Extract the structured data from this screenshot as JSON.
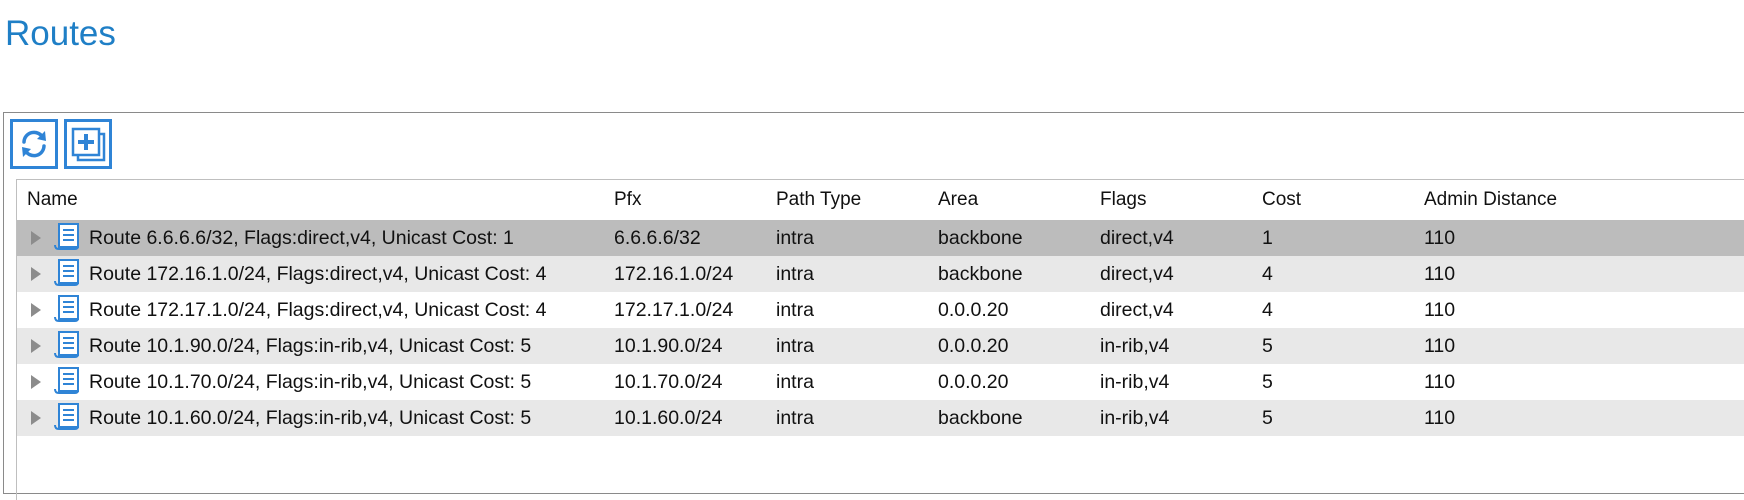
{
  "page": {
    "title": "Routes"
  },
  "toolbar": {
    "refresh_icon": "refresh-icon",
    "add_icon": "add-icon"
  },
  "table": {
    "columns": [
      "Name",
      "Pfx",
      "Path Type",
      "Area",
      "Flags",
      "Cost",
      "Admin Distance"
    ],
    "rows": [
      {
        "name": "Route 6.6.6.6/32, Flags:direct,v4, Unicast Cost: 1",
        "pfx": "6.6.6.6/32",
        "path_type": "intra",
        "area": "backbone",
        "flags": "direct,v4",
        "cost": "1",
        "admin_distance": "110"
      },
      {
        "name": "Route 172.16.1.0/24, Flags:direct,v4, Unicast Cost: 4",
        "pfx": "172.16.1.0/24",
        "path_type": "intra",
        "area": "backbone",
        "flags": "direct,v4",
        "cost": "4",
        "admin_distance": "110"
      },
      {
        "name": "Route 172.17.1.0/24, Flags:direct,v4, Unicast Cost: 4",
        "pfx": "172.17.1.0/24",
        "path_type": "intra",
        "area": "0.0.0.20",
        "flags": "direct,v4",
        "cost": "4",
        "admin_distance": "110"
      },
      {
        "name": "Route 10.1.90.0/24, Flags:in-rib,v4, Unicast Cost: 5",
        "pfx": "10.1.90.0/24",
        "path_type": "intra",
        "area": "0.0.0.20",
        "flags": "in-rib,v4",
        "cost": "5",
        "admin_distance": "110"
      },
      {
        "name": "Route 10.1.70.0/24, Flags:in-rib,v4, Unicast Cost: 5",
        "pfx": "10.1.70.0/24",
        "path_type": "intra",
        "area": "0.0.0.20",
        "flags": "in-rib,v4",
        "cost": "5",
        "admin_distance": "110"
      },
      {
        "name": "Route 10.1.60.0/24, Flags:in-rib,v4, Unicast Cost: 5",
        "pfx": "10.1.60.0/24",
        "path_type": "intra",
        "area": "backbone",
        "flags": "in-rib,v4",
        "cost": "5",
        "admin_distance": "110"
      }
    ]
  },
  "colors": {
    "title": "#1f7fc6",
    "toolbar_icon": "#2f84d6",
    "row_selected": "#bcbcbc",
    "row_alt": "#e8e8e8"
  },
  "icons": {
    "row_icon": "route-document-icon",
    "expander": "expand-arrow-icon"
  }
}
